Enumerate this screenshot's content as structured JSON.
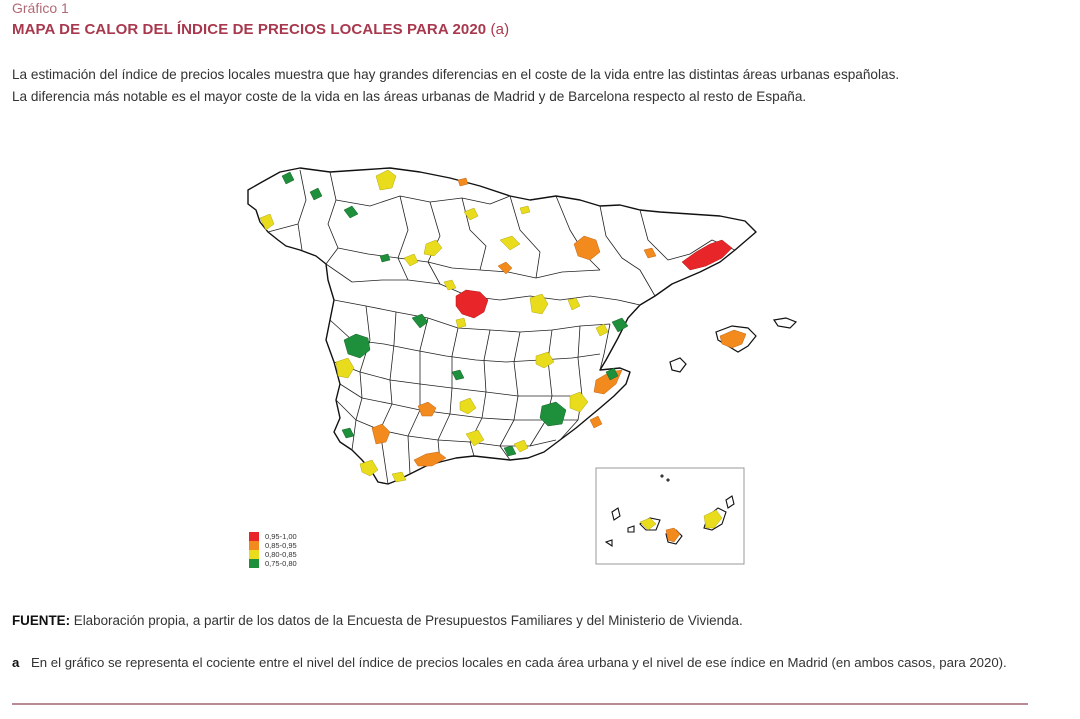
{
  "figure": {
    "label": "Gráfico 1",
    "title": "MAPA DE CALOR DEL ÍNDICE DE PRECIOS LOCALES PARA 2020",
    "title_suffix": "(a)"
  },
  "intro": {
    "line1": "La estimación del índice de precios locales muestra que hay grandes diferencias en el coste de la vida entre las distintas áreas urbanas españolas.",
    "line2": "La diferencia más notable es el mayor coste de la vida en las áreas urbanas de Madrid y de Barcelona respecto al resto de España."
  },
  "legend": [
    {
      "label": "0,95-1,00",
      "color": "#e8262a"
    },
    {
      "label": "0,85-0,95",
      "color": "#f28a1e"
    },
    {
      "label": "0,80-0,85",
      "color": "#e9dc1c"
    },
    {
      "label": "0,75-0,80",
      "color": "#1e8f3a"
    }
  ],
  "map": {
    "regions_highlighted": [
      {
        "area": "Madrid",
        "class": "0,95-1,00"
      },
      {
        "area": "Barcelona",
        "class": "0,95-1,00"
      }
    ],
    "inset": "Canarias"
  },
  "source": {
    "label": "FUENTE:",
    "text": "Elaboración propia, a partir de los datos de la Encuesta de Presupuestos Familiares y del Ministerio de Vivienda."
  },
  "note": {
    "letter": "a",
    "text": "En el gráfico se representa el cociente entre el nivel del índice de precios locales en cada área urbana y el nivel de ese índice en Madrid (en ambos casos, para 2020)."
  }
}
